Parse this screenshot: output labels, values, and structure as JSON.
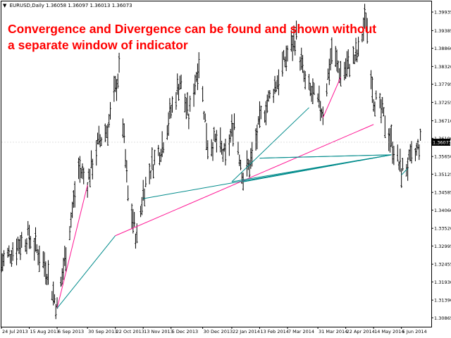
{
  "window": {
    "symbol_title": "EURUSD,Daily",
    "ohlc": "1.36058 1.36097 1.36013 1.36073",
    "dropdown_icon": "triangle-down-icon"
  },
  "annotation": {
    "headline_line1": "Convergence and Divergence can be found and shown without",
    "headline_line2": "a separate window of indicator"
  },
  "colors": {
    "candle": "#000000",
    "bullish_divergence": "#008b8b",
    "bearish_divergence": "#ff1493",
    "current_price_bg": "#000000",
    "headline": "#ff0000"
  },
  "chart_data": {
    "type": "line",
    "title": "EURUSD,Daily",
    "current_price": "1.36073",
    "y_ticks": [
      "1.39935",
      "1.39385",
      "1.38860",
      "1.38320",
      "1.37795",
      "1.37255",
      "1.36710",
      "1.36190",
      "1.35650",
      "1.35125",
      "1.34585",
      "1.34060",
      "1.33520",
      "1.32995",
      "1.32455",
      "1.31930",
      "1.31390",
      "1.30865"
    ],
    "x_ticks": [
      "24 Jul 2013",
      "15 Aug 2013",
      "6 Sep 2013",
      "30 Sep 2013",
      "22 Oct 2013",
      "13 Nov 2013",
      "5 Dec 2013",
      "30 Dec 2013",
      "22 Jan 2014",
      "13 Feb 2014",
      "7 Mar 2014",
      "31 Mar 2014",
      "22 Apr 2014",
      "14 May 2014",
      "5 Jun 2014"
    ],
    "ylim": [
      1.306,
      1.4025
    ],
    "price_path": [
      {
        "x": "24 Jul 2013",
        "y": 1.325
      },
      {
        "x": "5 Aug 2013",
        "y": 1.33
      },
      {
        "x": "15 Aug 2013",
        "y": 1.333
      },
      {
        "x": "28 Aug 2013",
        "y": 1.324
      },
      {
        "x": "6 Sep 2013",
        "y": 1.3115
      },
      {
        "x": "15 Sep 2013",
        "y": 1.333
      },
      {
        "x": "23 Sep 2013",
        "y": 1.353
      },
      {
        "x": "30 Sep 2013",
        "y": 1.349
      },
      {
        "x": "8 Oct 2013",
        "y": 1.36
      },
      {
        "x": "16 Oct 2013",
        "y": 1.365
      },
      {
        "x": "25 Oct 2013",
        "y": 1.382
      },
      {
        "x": "1 Nov 2013",
        "y": 1.345
      },
      {
        "x": "8 Nov 2013",
        "y": 1.332
      },
      {
        "x": "13 Nov 2013",
        "y": 1.346
      },
      {
        "x": "20 Nov 2013",
        "y": 1.354
      },
      {
        "x": "28 Nov 2013",
        "y": 1.36
      },
      {
        "x": "5 Dec 2013",
        "y": 1.37
      },
      {
        "x": "12 Dec 2013",
        "y": 1.379
      },
      {
        "x": "19 Dec 2013",
        "y": 1.368
      },
      {
        "x": "27 Dec 2013",
        "y": 1.385
      },
      {
        "x": "3 Jan 2014",
        "y": 1.36
      },
      {
        "x": "10 Jan 2014",
        "y": 1.361
      },
      {
        "x": "17 Jan 2014",
        "y": 1.356
      },
      {
        "x": "24 Jan 2014",
        "y": 1.367
      },
      {
        "x": "31 Jan 2014",
        "y": 1.35
      },
      {
        "x": "7 Feb 2014",
        "y": 1.356
      },
      {
        "x": "14 Feb 2014",
        "y": 1.368
      },
      {
        "x": "21 Feb 2014",
        "y": 1.374
      },
      {
        "x": "28 Feb 2014",
        "y": 1.38
      },
      {
        "x": "7 Mar 2014",
        "y": 1.387
      },
      {
        "x": "14 Mar 2014",
        "y": 1.392
      },
      {
        "x": "21 Mar 2014",
        "y": 1.378
      },
      {
        "x": "28 Mar 2014",
        "y": 1.374
      },
      {
        "x": "4 Apr 2014",
        "y": 1.37
      },
      {
        "x": "11 Apr 2014",
        "y": 1.388
      },
      {
        "x": "18 Apr 2014",
        "y": 1.381
      },
      {
        "x": "25 Apr 2014",
        "y": 1.384
      },
      {
        "x": "2 May 2014",
        "y": 1.387
      },
      {
        "x": "8 May 2014",
        "y": 1.398
      },
      {
        "x": "14 May 2014",
        "y": 1.374
      },
      {
        "x": "21 May 2014",
        "y": 1.369
      },
      {
        "x": "28 May 2014",
        "y": 1.361
      },
      {
        "x": "5 Jun 2014",
        "y": 1.352
      },
      {
        "x": "10 Jun 2014",
        "y": 1.354
      },
      {
        "x": "16 Jun 2014",
        "y": 1.357
      },
      {
        "x": "20 Jun 2014",
        "y": 1.3607
      }
    ],
    "divergence_lines": [
      {
        "color": "bearish_divergence",
        "from": {
          "x": "6 Sep 2013",
          "y": 1.3115
        },
        "to": {
          "x": "30 Sep 2013",
          "y": 1.348
        }
      },
      {
        "color": "bullish_divergence",
        "from": {
          "x": "6 Sep 2013",
          "y": 1.3115
        },
        "to": {
          "x": "22 Oct 2013",
          "y": 1.333
        }
      },
      {
        "color": "bearish_divergence",
        "from": {
          "x": "22 Oct 2013",
          "y": 1.333
        },
        "to": {
          "x": "14 May 2014",
          "y": 1.366
        }
      },
      {
        "color": "bullish_divergence",
        "from": {
          "x": "13 Nov 2013",
          "y": 1.344
        },
        "to": {
          "x": "28 May 2014",
          "y": 1.357
        }
      },
      {
        "color": "bullish_divergence",
        "from": {
          "x": "22 Jan 2014",
          "y": 1.349
        },
        "to": {
          "x": "28 May 2014",
          "y": 1.357
        }
      },
      {
        "color": "bullish_divergence",
        "from": {
          "x": "22 Jan 2014",
          "y": 1.349
        },
        "to": {
          "x": "24 Mar 2014",
          "y": 1.371
        }
      },
      {
        "color": "bullish_divergence",
        "from": {
          "x": "13 Feb 2014",
          "y": 1.356
        },
        "to": {
          "x": "28 May 2014",
          "y": 1.357
        }
      },
      {
        "color": "bullish_divergence",
        "from": {
          "x": "13 Feb 2014",
          "y": 1.356
        },
        "to": {
          "x": "28 May 2014",
          "y": 1.357
        }
      },
      {
        "color": "bearish_divergence",
        "from": {
          "x": "4 Apr 2014",
          "y": 1.368
        },
        "to": {
          "x": "18 Apr 2014",
          "y": 1.38
        }
      },
      {
        "color": "bullish_divergence",
        "from": {
          "x": "31 Jan 2014",
          "y": 1.349
        },
        "to": {
          "x": "28 May 2014",
          "y": 1.357
        }
      },
      {
        "color": "bullish_divergence",
        "from": {
          "x": "31 Jan 2014",
          "y": 1.349
        },
        "to": {
          "x": "28 May 2014",
          "y": 1.357
        }
      },
      {
        "color": "bullish_divergence",
        "from": {
          "x": "5 Jun 2014",
          "y": 1.351
        },
        "to": {
          "x": "10 Jun 2014",
          "y": 1.353
        }
      }
    ]
  }
}
